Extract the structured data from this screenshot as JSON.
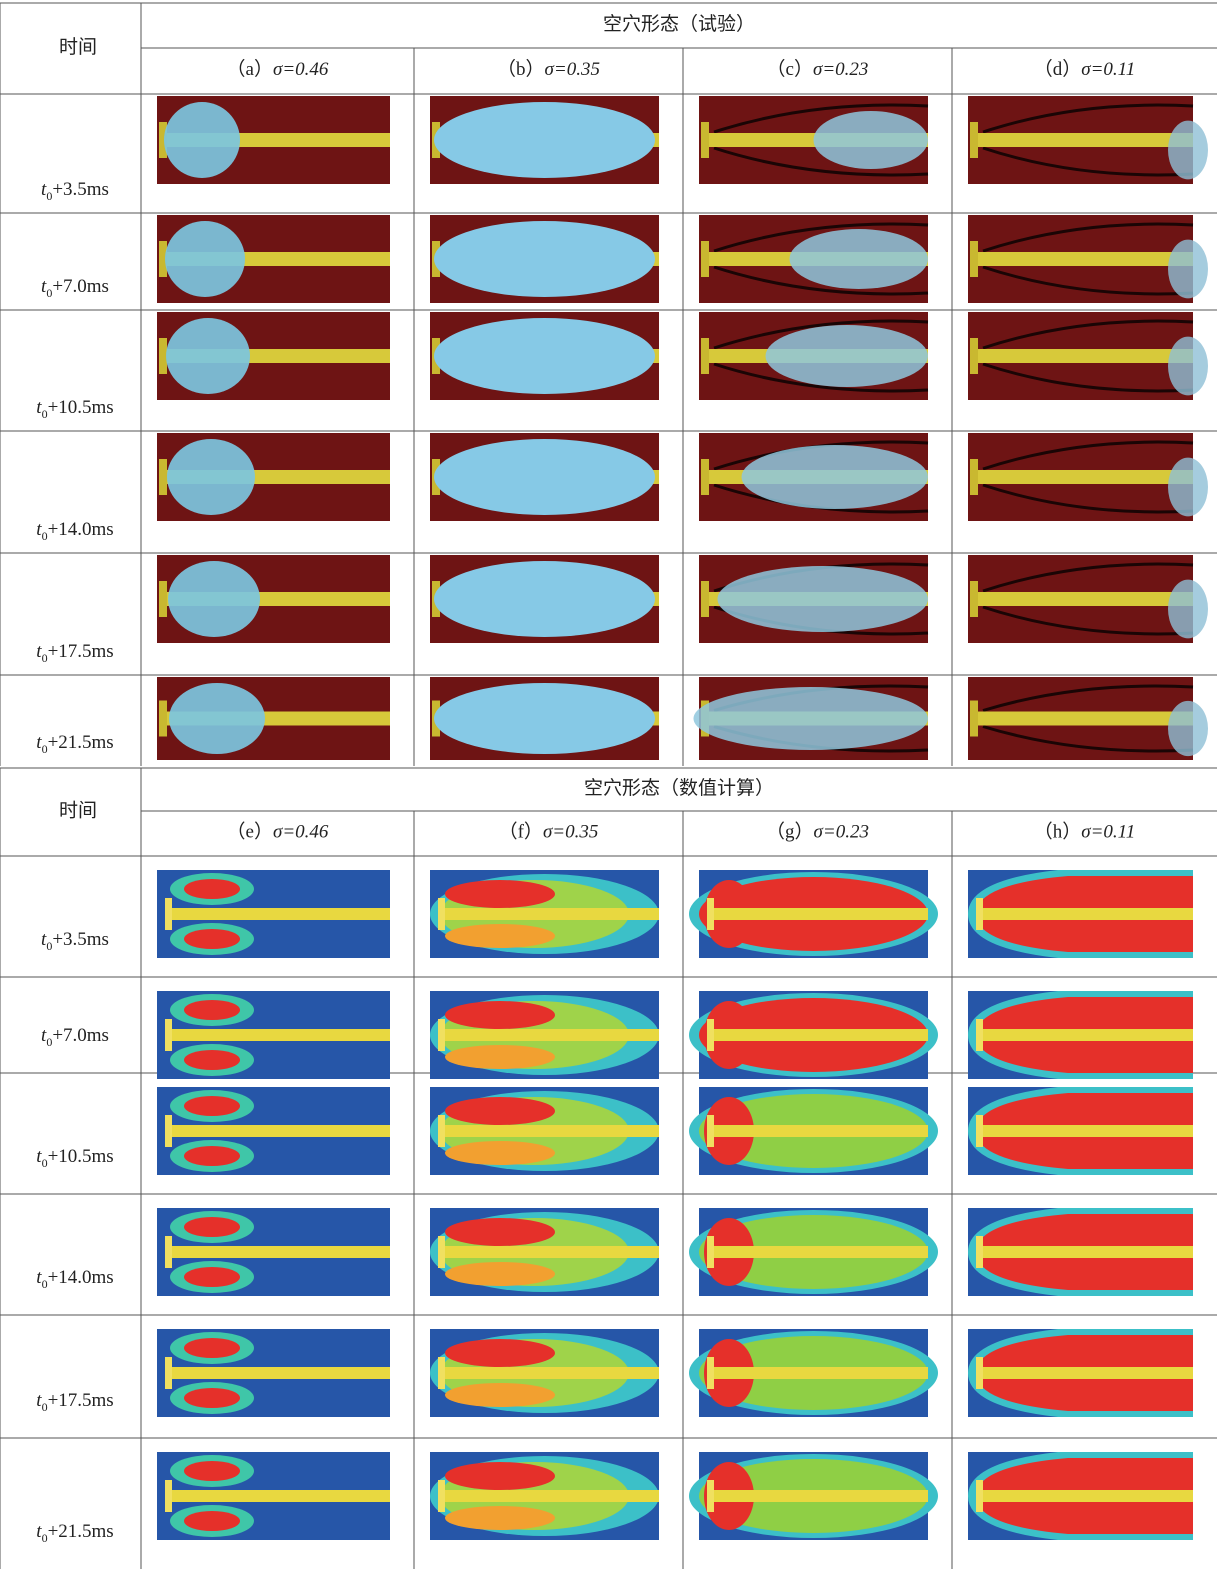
{
  "sections": [
    {
      "time_header": "时间",
      "group_title": "空穴形态（试验）",
      "columns": [
        {
          "letter": "（a）",
          "sigma": "σ=0.46"
        },
        {
          "letter": "（b）",
          "sigma": "σ=0.35"
        },
        {
          "letter": "（c）",
          "sigma": "σ=0.23"
        },
        {
          "letter": "（d）",
          "sigma": "σ=0.11"
        }
      ],
      "rows": [
        {
          "var": "t",
          "sub": "0",
          "offset": "+3.5ms"
        },
        {
          "var": "t",
          "sub": "0",
          "offset": "+7.0ms"
        },
        {
          "var": "t",
          "sub": "0",
          "offset": "+10.5ms"
        },
        {
          "var": "t",
          "sub": "0",
          "offset": "+14.0ms"
        },
        {
          "var": "t",
          "sub": "0",
          "offset": "+17.5ms"
        },
        {
          "var": "t",
          "sub": "0",
          "offset": "+21.5ms"
        }
      ]
    },
    {
      "time_header": "时间",
      "group_title": "空穴形态（数值计算）",
      "columns": [
        {
          "letter": "（e）",
          "sigma": "σ=0.46"
        },
        {
          "letter": "（f）",
          "sigma": "σ=0.35"
        },
        {
          "letter": "（g）",
          "sigma": "σ=0.23"
        },
        {
          "letter": "（h）",
          "sigma": "σ=0.11"
        }
      ],
      "rows": [
        {
          "var": "t",
          "sub": "0",
          "offset": "+3.5ms"
        },
        {
          "var": "t",
          "sub": "0",
          "offset": "+7.0ms"
        },
        {
          "var": "t",
          "sub": "0",
          "offset": "+10.5ms"
        },
        {
          "var": "t",
          "sub": "0",
          "offset": "+14.0ms"
        },
        {
          "var": "t",
          "sub": "0",
          "offset": "+17.5ms"
        },
        {
          "var": "t",
          "sub": "0",
          "offset": "+21.5ms"
        }
      ]
    }
  ]
}
